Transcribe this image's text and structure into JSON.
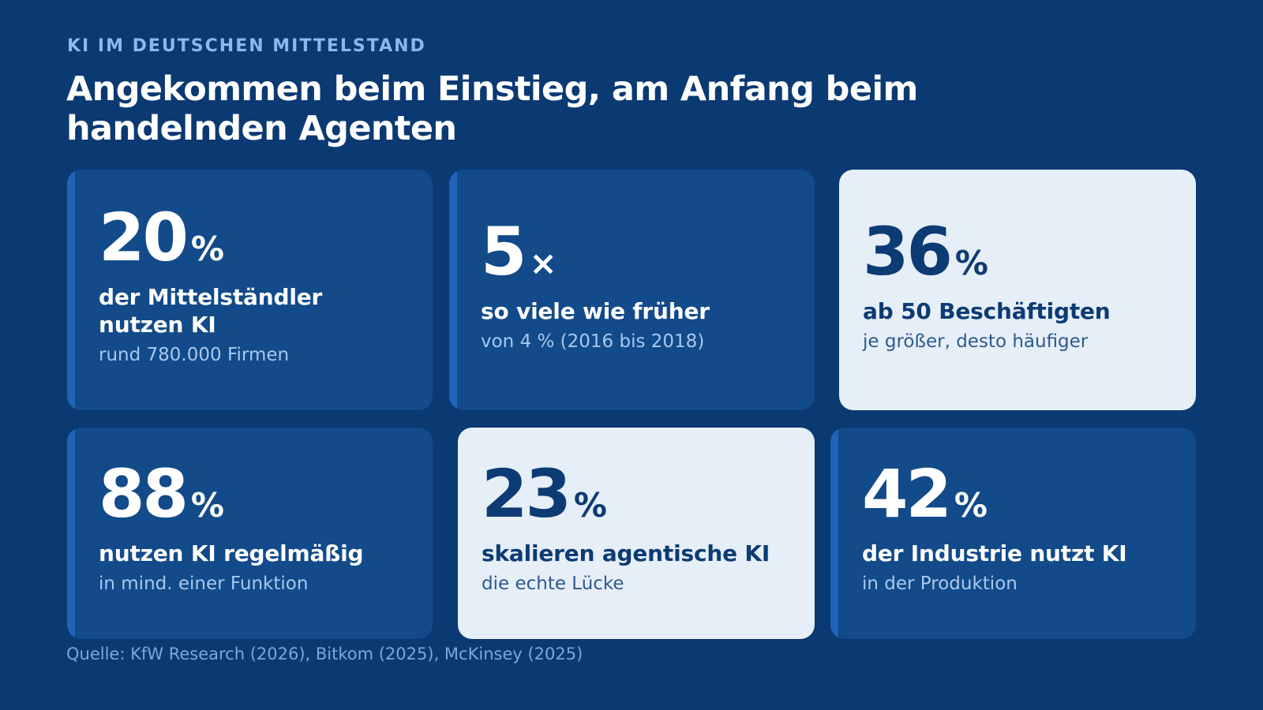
{
  "header": {
    "eyebrow": "KI IM DEUTSCHEN MITTELSTAND",
    "title": "Angekommen beim Einstieg, am Anfang beim handelnden Agenten"
  },
  "cards": [
    {
      "value": "20",
      "unit": "%",
      "label": "der Mittelständler nutzen KI",
      "sub": "rund 780.000 Firmen",
      "theme": "dark"
    },
    {
      "value": "5",
      "unit": "×",
      "label": "so viele wie früher",
      "sub": "von 4 % (2016 bis 2018)",
      "theme": "dark"
    },
    {
      "value": "36",
      "unit": "%",
      "label": "ab 50 Beschäftigten",
      "sub": "je größer, desto häufiger",
      "theme": "light"
    },
    {
      "value": "88",
      "unit": "%",
      "label": "nutzen KI regelmäßig",
      "sub": "in mind. einer Funktion",
      "theme": "dark"
    },
    {
      "value": "23",
      "unit": "%",
      "label": "skalieren agentische KI",
      "sub": "die echte Lücke",
      "theme": "light"
    },
    {
      "value": "42",
      "unit": "%",
      "label": "der Industrie nutzt KI",
      "sub": "in der Produktion",
      "theme": "dark"
    }
  ],
  "footer": {
    "source": "Quelle: KfW Research (2026), Bitkom (2025), McKinsey (2025)"
  },
  "colors": {
    "background": "#0b3a72",
    "card_dark": "#124a8a",
    "card_light": "#e6eef8",
    "accent_bar": "#1f64b8",
    "eyebrow": "#8cb8ef"
  }
}
